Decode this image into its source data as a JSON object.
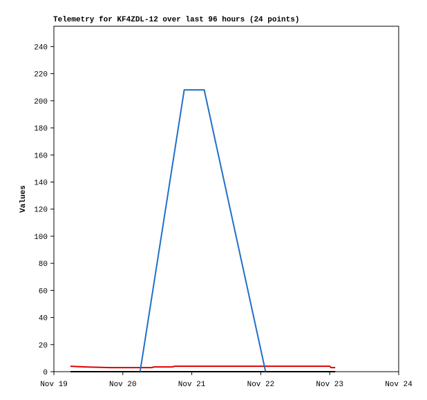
{
  "chart_data": {
    "type": "line",
    "title": "Telemetry for KF4ZDL-12 over last 96 hours (24 points)",
    "y_label": "Values",
    "xlim": [
      19,
      24
    ],
    "xticks": [
      {
        "value": 19,
        "label": "Nov 19"
      },
      {
        "value": 20,
        "label": "Nov 20"
      },
      {
        "value": 21,
        "label": "Nov 21"
      },
      {
        "value": 22,
        "label": "Nov 22"
      },
      {
        "value": 23,
        "label": "Nov 23"
      },
      {
        "value": 24,
        "label": "Nov 24"
      }
    ],
    "ylim": [
      0,
      255
    ],
    "yticks": [
      0,
      20,
      40,
      60,
      80,
      100,
      120,
      140,
      160,
      180,
      200,
      220,
      240
    ],
    "grid": false,
    "series": [
      {
        "color": "#000000",
        "x": [
          19.24,
          23.08
        ],
        "values": [
          0,
          0
        ]
      },
      {
        "color": "#e00000",
        "x": [
          19.24,
          19.45,
          19.82,
          20.42,
          20.45,
          20.72,
          20.75,
          23.0,
          23.02,
          23.08
        ],
        "values": [
          4,
          3.5,
          3,
          3,
          3.5,
          3.5,
          4,
          4,
          3,
          3
        ]
      },
      {
        "color": "#1f6fc8",
        "x": [
          20.25,
          20.89,
          21.18,
          22.07
        ],
        "values": [
          0,
          208,
          208,
          0
        ]
      }
    ]
  }
}
